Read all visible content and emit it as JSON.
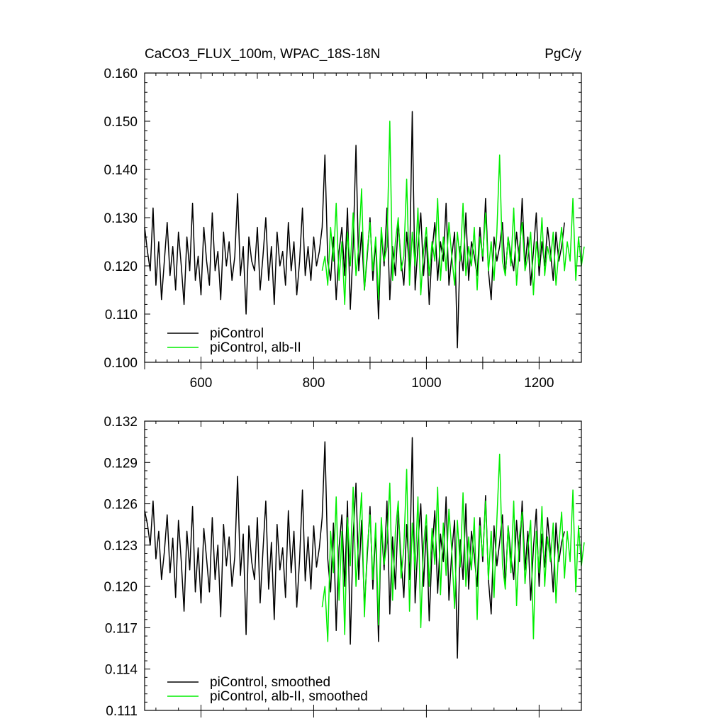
{
  "chart_data": [
    {
      "type": "line",
      "title": "CaCO3_FLUX_100m, WPAC_18S-18N",
      "units": "PgC/y",
      "xlim": [
        500,
        1275
      ],
      "ylim": [
        0.1,
        0.16
      ],
      "x_ticks": [
        "600",
        "800",
        "1000",
        "1200"
      ],
      "y_ticks": [
        "0.100",
        "0.110",
        "0.120",
        "0.130",
        "0.140",
        "0.150",
        "0.160"
      ],
      "legend_position": "bottom-left",
      "series": [
        {
          "name": "piControl",
          "color": "#000000",
          "x_start": 500,
          "x_step": 5,
          "values": [
            0.128,
            0.123,
            0.119,
            0.132,
            0.116,
            0.125,
            0.113,
            0.121,
            0.129,
            0.118,
            0.124,
            0.115,
            0.127,
            0.12,
            0.112,
            0.126,
            0.119,
            0.133,
            0.117,
            0.122,
            0.114,
            0.128,
            0.121,
            0.116,
            0.131,
            0.119,
            0.123,
            0.113,
            0.127,
            0.12,
            0.125,
            0.117,
            0.122,
            0.135,
            0.118,
            0.124,
            0.11,
            0.126,
            0.121,
            0.119,
            0.128,
            0.115,
            0.122,
            0.13,
            0.117,
            0.124,
            0.112,
            0.127,
            0.12,
            0.123,
            0.116,
            0.129,
            0.119,
            0.125,
            0.114,
            0.121,
            0.132,
            0.118,
            0.124,
            0.117,
            0.126,
            0.12,
            0.123,
            0.128,
            0.143,
            0.121,
            0.117,
            0.126,
            0.113,
            0.123,
            0.128,
            0.118,
            0.132,
            0.111,
            0.124,
            0.145,
            0.119,
            0.127,
            0.115,
            0.122,
            0.13,
            0.117,
            0.125,
            0.109,
            0.127,
            0.12,
            0.132,
            0.113,
            0.124,
            0.118,
            0.129,
            0.121,
            0.116,
            0.127,
            0.119,
            0.152,
            0.115,
            0.124,
            0.131,
            0.118,
            0.126,
            0.112,
            0.123,
            0.129,
            0.117,
            0.125,
            0.121,
            0.133,
            0.116,
            0.122,
            0.127,
            0.103,
            0.124,
            0.119,
            0.131,
            0.117,
            0.125,
            0.122,
            0.118,
            0.128,
            0.121,
            0.134,
            0.119,
            0.113,
            0.126,
            0.121,
            0.124,
            0.129,
            0.118,
            0.126,
            0.122,
            0.119,
            0.127,
            0.121,
            0.134,
            0.12,
            0.126,
            0.116,
            0.123,
            0.131,
            0.118,
            0.125,
            0.12,
            0.128,
            0.123,
            0.117,
            0.127,
            0.121,
            0.124,
            0.129
          ]
        },
        {
          "name": "piControl, alb-II",
          "color": "#00ee00",
          "x_start": 815,
          "x_step": 5,
          "values": [
            0.119,
            0.122,
            0.116,
            0.128,
            0.121,
            0.133,
            0.117,
            0.125,
            0.112,
            0.127,
            0.12,
            0.131,
            0.118,
            0.124,
            0.136,
            0.115,
            0.123,
            0.129,
            0.119,
            0.126,
            0.113,
            0.128,
            0.121,
            0.124,
            0.15,
            0.117,
            0.125,
            0.13,
            0.119,
            0.122,
            0.138,
            0.116,
            0.127,
            0.12,
            0.132,
            0.114,
            0.123,
            0.128,
            0.118,
            0.125,
            0.121,
            0.134,
            0.117,
            0.126,
            0.119,
            0.129,
            0.122,
            0.116,
            0.127,
            0.121,
            0.133,
            0.118,
            0.124,
            0.12,
            0.128,
            0.115,
            0.126,
            0.122,
            0.131,
            0.119,
            0.125,
            0.117,
            0.127,
            0.143,
            0.121,
            0.118,
            0.126,
            0.12,
            0.132,
            0.116,
            0.124,
            0.129,
            0.119,
            0.122,
            0.127,
            0.114,
            0.125,
            0.12,
            0.13,
            0.118,
            0.124,
            0.121,
            0.127,
            0.116,
            0.123,
            0.128,
            0.119,
            0.125,
            0.121,
            0.134,
            0.117,
            0.126,
            0.12,
            0.124
          ]
        }
      ]
    },
    {
      "type": "line",
      "title": "",
      "xlim": [
        500,
        1275
      ],
      "ylim": [
        0.111,
        0.132
      ],
      "x_ticks": [],
      "y_ticks": [
        "0.111",
        "0.114",
        "0.117",
        "0.120",
        "0.123",
        "0.126",
        "0.129",
        "0.132"
      ],
      "legend_position": "bottom-left",
      "series": [
        {
          "name": "piControl, smoothed",
          "color": "#000000",
          "x_start": 500,
          "x_step": 5,
          "values": [
            0.1255,
            0.1245,
            0.123,
            0.1262,
            0.122,
            0.124,
            0.1205,
            0.1225,
            0.1252,
            0.121,
            0.1235,
            0.1192,
            0.1248,
            0.1218,
            0.1182,
            0.124,
            0.1212,
            0.1258,
            0.1196,
            0.1228,
            0.1188,
            0.1242,
            0.122,
            0.1196,
            0.125,
            0.1205,
            0.123,
            0.1178,
            0.1245,
            0.1215,
            0.1236,
            0.12,
            0.1222,
            0.128,
            0.1208,
            0.1238,
            0.1165,
            0.1244,
            0.1218,
            0.1205,
            0.125,
            0.1188,
            0.1226,
            0.1262,
            0.1198,
            0.1232,
            0.1176,
            0.1245,
            0.1212,
            0.1228,
            0.1192,
            0.1255,
            0.121,
            0.124,
            0.1185,
            0.122,
            0.127,
            0.1204,
            0.1236,
            0.1198,
            0.1244,
            0.1214,
            0.1228,
            0.125,
            0.1305,
            0.122,
            0.1196,
            0.1246,
            0.1168,
            0.1228,
            0.1252,
            0.12,
            0.1262,
            0.1158,
            0.1236,
            0.1275,
            0.1205,
            0.1248,
            0.1185,
            0.1222,
            0.1258,
            0.1198,
            0.124,
            0.116,
            0.1245,
            0.1212,
            0.1262,
            0.118,
            0.1236,
            0.1198,
            0.1255,
            0.122,
            0.1192,
            0.1245,
            0.1205,
            0.1308,
            0.1188,
            0.1232,
            0.126,
            0.12,
            0.1244,
            0.1175,
            0.1226,
            0.1255,
            0.1195,
            0.1238,
            0.1218,
            0.1265,
            0.119,
            0.1225,
            0.1248,
            0.1148,
            0.1234,
            0.1205,
            0.126,
            0.1198,
            0.124,
            0.1222,
            0.12,
            0.125,
            0.1218,
            0.1266,
            0.1205,
            0.118,
            0.1244,
            0.1215,
            0.1232,
            0.1252,
            0.12,
            0.1244,
            0.1222,
            0.1205,
            0.1248,
            0.1218,
            0.1262,
            0.1212,
            0.124,
            0.119,
            0.1228,
            0.1256,
            0.12,
            0.1238,
            0.1214,
            0.125,
            0.1226,
            0.1196,
            0.1246,
            0.1218,
            0.1232,
            0.124
          ]
        },
        {
          "name": "piControl, alb-II, smoothed",
          "color": "#00ee00",
          "x_start": 815,
          "x_step": 5,
          "values": [
            0.1185,
            0.12,
            0.116,
            0.124,
            0.121,
            0.1265,
            0.119,
            0.124,
            0.1165,
            0.125,
            0.1215,
            0.1272,
            0.12,
            0.1235,
            0.1268,
            0.1178,
            0.1228,
            0.1252,
            0.1205,
            0.1246,
            0.1172,
            0.125,
            0.1216,
            0.1232,
            0.1275,
            0.119,
            0.124,
            0.1262,
            0.1206,
            0.1228,
            0.1285,
            0.1182,
            0.1246,
            0.1212,
            0.1265,
            0.117,
            0.123,
            0.1252,
            0.12,
            0.1242,
            0.1216,
            0.1272,
            0.1194,
            0.1246,
            0.1208,
            0.1256,
            0.1226,
            0.1184,
            0.1248,
            0.1214,
            0.1268,
            0.12,
            0.1236,
            0.1212,
            0.125,
            0.1176,
            0.1244,
            0.1222,
            0.1262,
            0.1205,
            0.124,
            0.1192,
            0.1248,
            0.1296,
            0.1216,
            0.1198,
            0.1244,
            0.121,
            0.1262,
            0.1186,
            0.1236,
            0.1254,
            0.1202,
            0.1228,
            0.1248,
            0.1162,
            0.124,
            0.121,
            0.1258,
            0.12,
            0.1236,
            0.1218,
            0.1246,
            0.1188,
            0.123,
            0.1254,
            0.1206,
            0.124,
            0.1218,
            0.127,
            0.1196,
            0.1244,
            0.1215,
            0.1232
          ]
        }
      ]
    }
  ]
}
